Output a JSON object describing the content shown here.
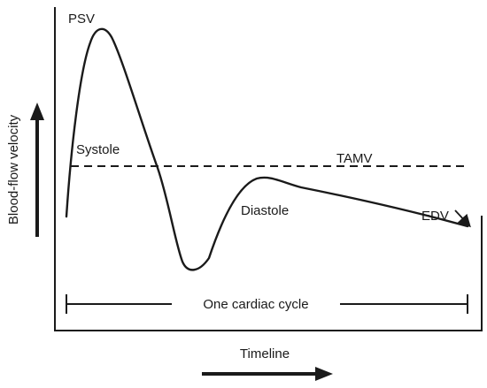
{
  "labels": {
    "psv": "PSV",
    "systole": "Systole",
    "tamv": "TAMV",
    "diastole": "Diastole",
    "edv": "EDV",
    "cycle": "One cardiac cycle",
    "y_axis": "Blood-flow velocity",
    "x_axis": "Timeline"
  },
  "colors": {
    "ink": "#1a1a1a",
    "background": "#ffffff"
  }
}
